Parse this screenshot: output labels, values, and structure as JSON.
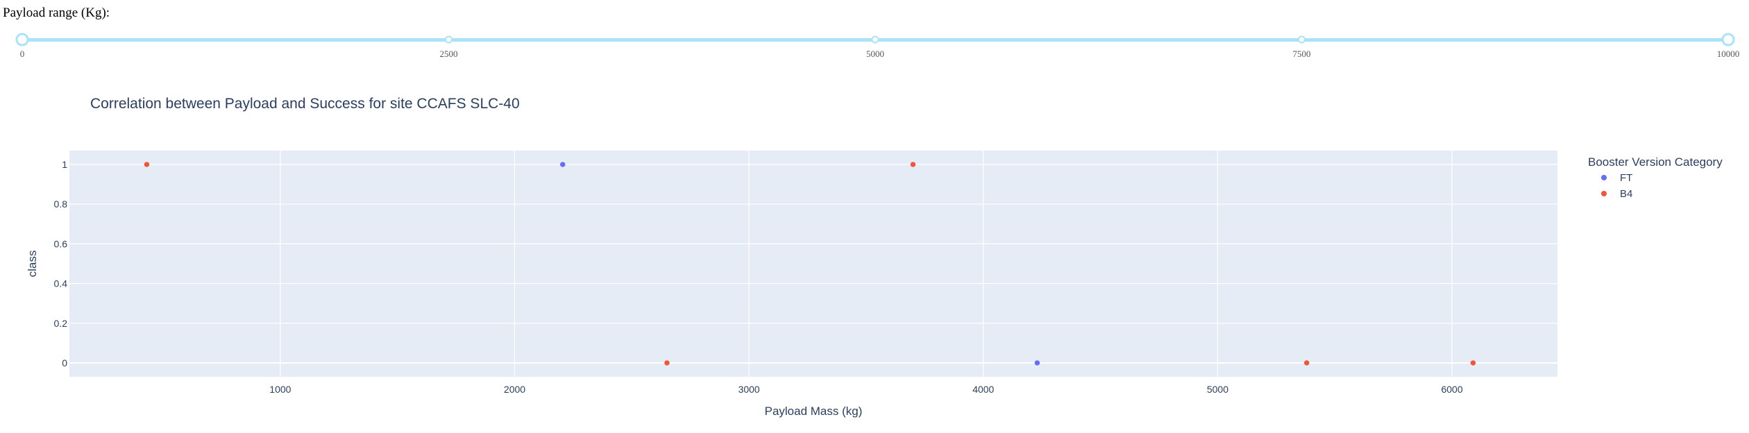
{
  "slider": {
    "label": "Payload range (Kg):",
    "min": 0,
    "max": 10000,
    "value": [
      0,
      10000
    ],
    "marks": [
      "0",
      "2500",
      "5000",
      "7500",
      "10000"
    ],
    "track_color": "#abe2fb",
    "handle_color": "#abe2fb"
  },
  "chart_data": {
    "type": "scatter",
    "title": "Correlation between Payload and Success for site CCAFS SLC-40",
    "xlabel": "Payload Mass (kg)",
    "ylabel": "class",
    "xlim": [
      100,
      6450
    ],
    "ylim": [
      -0.07,
      1.07
    ],
    "xticks": [
      1000,
      2000,
      3000,
      4000,
      5000,
      6000
    ],
    "yticks": [
      0,
      0.2,
      0.4,
      0.6,
      0.8,
      1
    ],
    "ytick_labels": [
      "0",
      "0.2",
      "0.4",
      "0.6",
      "0.8",
      "1"
    ],
    "grid": true,
    "legend_title": "Booster Version Category",
    "legend_position": "right",
    "plot_bgcolor": "#e5ecf6",
    "series": [
      {
        "name": "FT",
        "color": "#636efa",
        "x": [
          2205,
          4230
        ],
        "y": [
          1,
          0
        ]
      },
      {
        "name": "B4",
        "color": "#ef553b",
        "x": [
          430,
          2650,
          3700,
          5380,
          6090
        ],
        "y": [
          1,
          0,
          1,
          0,
          0
        ]
      }
    ]
  }
}
